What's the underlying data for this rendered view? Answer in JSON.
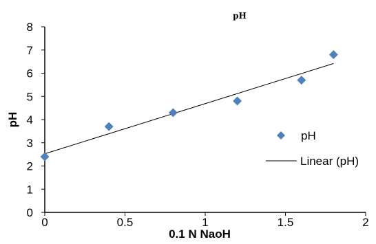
{
  "chart_data": {
    "type": "scatter",
    "title": "pH",
    "xlabel": "0.1 N NaoH",
    "ylabel": "pH",
    "xlim": [
      0,
      2
    ],
    "ylim": [
      0,
      8
    ],
    "x_ticks": [
      "0",
      "0.5",
      "1",
      "1.5",
      "2"
    ],
    "y_ticks": [
      "0",
      "1",
      "2",
      "3",
      "4",
      "5",
      "6",
      "7",
      "8"
    ],
    "grid": false,
    "legend_position": "right",
    "series": [
      {
        "name": "pH",
        "marker": "diamond",
        "color": "#4f81bd",
        "x": [
          0,
          0.4,
          0.8,
          1.2,
          1.6,
          1.8
        ],
        "y": [
          2.4,
          3.7,
          4.3,
          4.8,
          5.7,
          6.8
        ]
      }
    ],
    "trendline": {
      "name": "Linear (pH)",
      "type": "linear",
      "color": "#000000",
      "x_range": [
        0,
        1.8
      ]
    }
  }
}
